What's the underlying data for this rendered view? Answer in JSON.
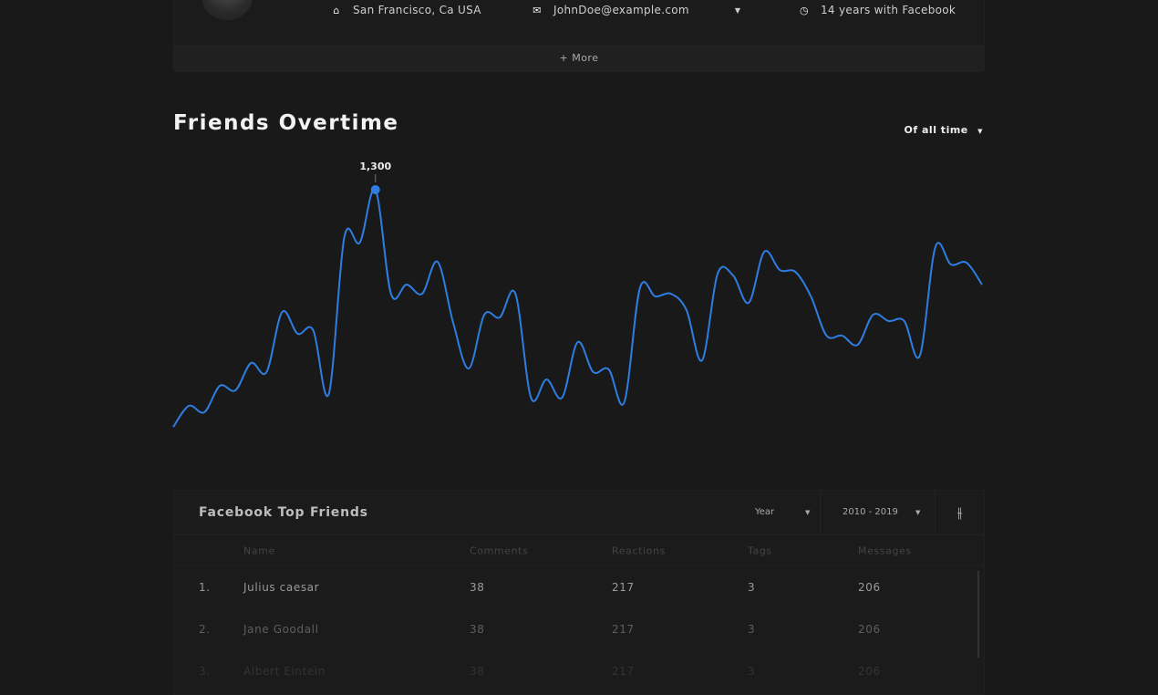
{
  "profile": {
    "location": "San Francisco, Ca USA",
    "email": "JohnDoe@example.com",
    "tenure": "14 years with Facebook",
    "more_label": "+ More"
  },
  "chart_section": {
    "title": "Friends Overtime",
    "range_label": "Of all time"
  },
  "chart_data": {
    "type": "line",
    "title": "Friends Overtime",
    "color": "#2f7de1",
    "peak_label": "1,300",
    "grid": false,
    "values": [
      142,
      245,
      214,
      343,
      321,
      454,
      410,
      703,
      597,
      614,
      303,
      1068,
      1042,
      1300,
      792,
      837,
      792,
      948,
      650,
      427,
      690,
      677,
      792,
      285,
      374,
      285,
      556,
      410,
      423,
      263,
      819,
      779,
      792,
      712,
      467,
      890,
      881,
      748,
      997,
      908,
      899,
      779,
      588,
      588,
      543,
      690,
      659,
      659,
      490,
      1020,
      935,
      944,
      837
    ]
  },
  "table": {
    "title": "Facebook Top Friends",
    "period_select": "Year",
    "years_select": "2010 - 2019",
    "columns": [
      "Name",
      "Comments",
      "Reactions",
      "Tags",
      "Messages"
    ],
    "rows": [
      {
        "rank": "1.",
        "name": "Julius caesar",
        "comments": "38",
        "reactions": "217",
        "tags": "3",
        "messages": "206"
      },
      {
        "rank": "2.",
        "name": "Jane Goodall",
        "comments": "38",
        "reactions": "217",
        "tags": "3",
        "messages": "206"
      },
      {
        "rank": "3.",
        "name": "Albert Eintein",
        "comments": "38",
        "reactions": "217",
        "tags": "3",
        "messages": "206"
      }
    ]
  }
}
